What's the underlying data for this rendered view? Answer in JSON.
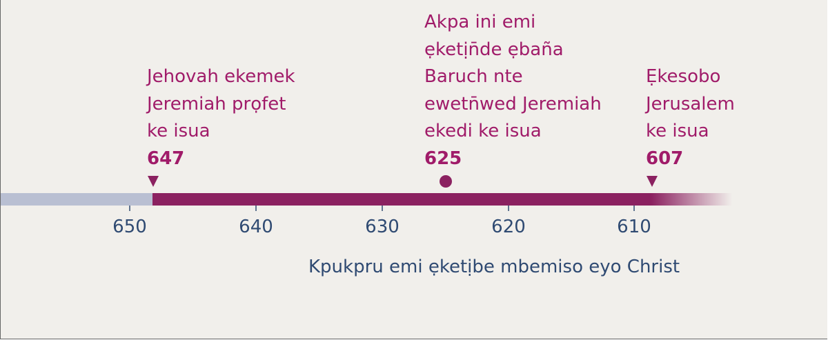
{
  "events": [
    {
      "lines": [
        "Jehovah ekemek",
        "Jeremiah prọfet",
        "ke isua"
      ],
      "year": 647
    },
    {
      "lines": [
        "Akpa ini emi",
        "ẹketịn̄de ẹbaña",
        "Baruch nte",
        "ewetn̄wed Jeremiah",
        "ekedi ke isua"
      ],
      "year": 625
    },
    {
      "lines": [
        "Ẹkesobo",
        "Jerusalem",
        "ke isua"
      ],
      "year": 607
    }
  ],
  "axis": {
    "ticks": [
      650,
      640,
      630,
      620,
      610
    ],
    "caption": "Kpukpru emi ẹketịbe mbemiso eyo Christ"
  }
}
